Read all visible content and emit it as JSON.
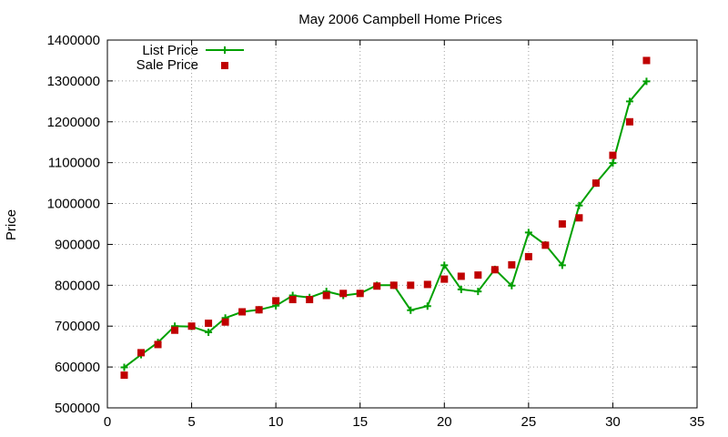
{
  "chart_data": {
    "type": "line",
    "title": "May 2006 Campbell Home Prices",
    "xlabel": "",
    "ylabel": "Price",
    "xlim": [
      0,
      35
    ],
    "ylim": [
      500000,
      1400000
    ],
    "xticks": [
      "0",
      "5",
      "10",
      "15",
      "20",
      "25",
      "30",
      "35"
    ],
    "yticks": [
      "500000",
      "600000",
      "700000",
      "800000",
      "900000",
      "1000000",
      "1100000",
      "1200000",
      "1300000",
      "1400000"
    ],
    "grid": true,
    "legend_position": "top-left",
    "x": [
      1,
      2,
      3,
      4,
      5,
      6,
      7,
      8,
      9,
      10,
      11,
      12,
      13,
      14,
      15,
      16,
      17,
      18,
      19,
      20,
      21,
      22,
      23,
      24,
      25,
      26,
      27,
      28,
      29,
      30,
      31,
      32
    ],
    "series": [
      {
        "name": "List Price",
        "style": "line-plus",
        "color": "#00a000",
        "values": [
          599000,
          630000,
          660000,
          700000,
          699000,
          685000,
          720000,
          735000,
          740000,
          750000,
          775000,
          770000,
          785000,
          775000,
          780000,
          800000,
          800000,
          739000,
          749000,
          849000,
          790000,
          785000,
          839000,
          799000,
          929000,
          899000,
          849000,
          995000,
          1050000,
          1099000,
          1250000,
          1299000
        ]
      },
      {
        "name": "Sale Price",
        "style": "square",
        "color": "#c00000",
        "values": [
          580000,
          635000,
          655000,
          690000,
          700000,
          707000,
          710000,
          735000,
          740000,
          762000,
          765000,
          765000,
          775000,
          780000,
          780000,
          798000,
          800000,
          800000,
          802000,
          815000,
          822000,
          825000,
          838000,
          850000,
          870000,
          898000,
          950000,
          965000,
          1050000,
          1118000,
          1200000,
          1350000
        ]
      }
    ]
  }
}
